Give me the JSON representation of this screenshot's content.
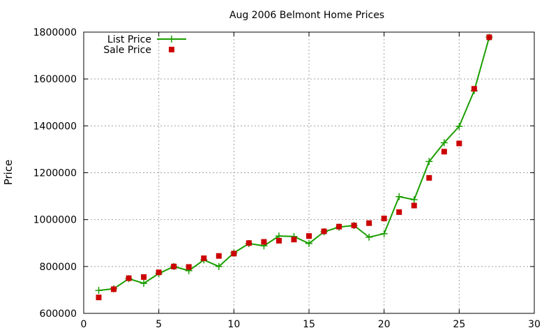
{
  "chart_data": {
    "type": "line",
    "title": "Aug 2006 Belmont Home Prices",
    "xlabel": "",
    "ylabel": "Price",
    "xlim": [
      0,
      30
    ],
    "ylim": [
      600000,
      1800000
    ],
    "xticks": [
      0,
      5,
      10,
      15,
      20,
      25,
      30
    ],
    "yticks": [
      600000,
      800000,
      1000000,
      1200000,
      1400000,
      1600000,
      1800000
    ],
    "grid": true,
    "legend_position": "top-left",
    "series": [
      {
        "name": "List Price",
        "style": "lines+points",
        "marker": "plus",
        "color": "#1a9e00",
        "x": [
          1,
          2,
          3,
          4,
          5,
          6,
          7,
          8,
          9,
          10,
          11,
          12,
          13,
          14,
          15,
          16,
          17,
          18,
          19,
          20,
          21,
          22,
          23,
          24,
          25,
          26,
          27
        ],
        "y": [
          698000,
          705000,
          748000,
          728000,
          770000,
          800000,
          782000,
          828000,
          800000,
          858000,
          898000,
          888000,
          930000,
          928000,
          898000,
          948000,
          968000,
          975000,
          925000,
          940000,
          1098000,
          1085000,
          1248000,
          1328000,
          1398000,
          1550000,
          1778000
        ]
      },
      {
        "name": "Sale Price",
        "style": "points",
        "marker": "square",
        "color": "#cc0000",
        "x": [
          1,
          2,
          3,
          4,
          5,
          6,
          7,
          8,
          9,
          10,
          11,
          12,
          13,
          14,
          15,
          16,
          17,
          18,
          19,
          20,
          21,
          22,
          23,
          24,
          25,
          26,
          27
        ],
        "y": [
          668000,
          703000,
          750000,
          755000,
          775000,
          800000,
          798000,
          835000,
          845000,
          855000,
          900000,
          905000,
          910000,
          915000,
          930000,
          950000,
          970000,
          975000,
          985000,
          1005000,
          1032000,
          1060000,
          1178000,
          1290000,
          1325000,
          1558000,
          1778000
        ]
      }
    ]
  }
}
